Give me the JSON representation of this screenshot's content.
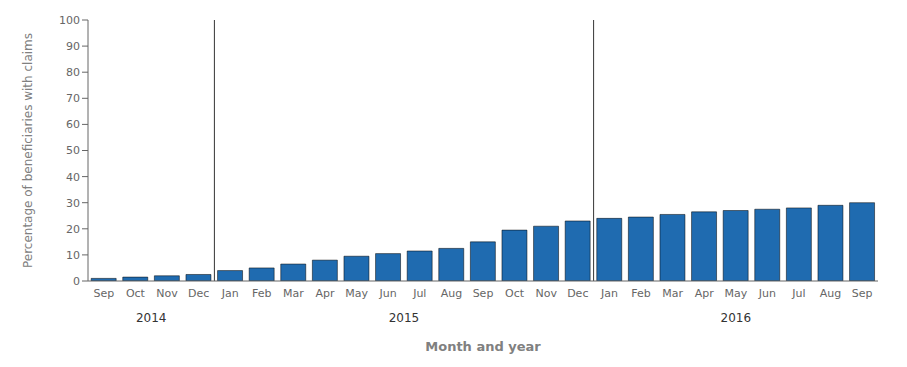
{
  "chart_data": {
    "type": "bar",
    "xlabel": "Month and year",
    "ylabel": "Percentage of beneficiaries with claims",
    "categories": [
      "Sep",
      "Oct",
      "Nov",
      "Dec",
      "Jan",
      "Feb",
      "Mar",
      "Apr",
      "May",
      "Jun",
      "Jul",
      "Aug",
      "Sep",
      "Oct",
      "Nov",
      "Dec",
      "Jan",
      "Feb",
      "Mar",
      "Apr",
      "May",
      "Jun",
      "Jul",
      "Aug",
      "Sep"
    ],
    "values": [
      1.0,
      1.5,
      2.0,
      2.5,
      4.0,
      5.0,
      6.5,
      8.0,
      9.5,
      10.5,
      11.5,
      12.5,
      15.0,
      19.5,
      21.0,
      23.0,
      24.0,
      24.5,
      25.5,
      26.5,
      27.0,
      27.5,
      28.0,
      29.0,
      30.0
    ],
    "color": "#1F6BB0",
    "ylim": [
      0,
      100
    ],
    "yticks": [
      0,
      10,
      20,
      30,
      40,
      50,
      60,
      70,
      80,
      90,
      100
    ],
    "grid": false,
    "annotations": [
      {
        "text": "2014",
        "start": 0,
        "end": 3
      },
      {
        "text": "2015",
        "start": 4,
        "end": 15
      },
      {
        "text": "2016",
        "start": 16,
        "end": 24
      }
    ]
  }
}
